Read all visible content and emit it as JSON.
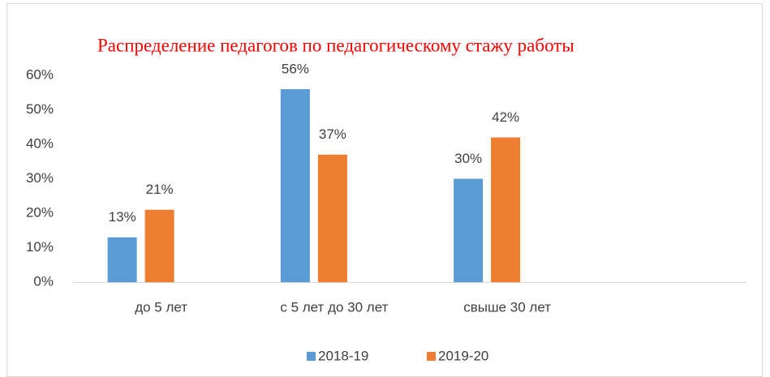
{
  "chart_data": {
    "type": "bar",
    "title": "Распределение педагогов по педагогическому стажу работы",
    "categories": [
      "до 5 лет",
      "с 5 лет до 30 лет",
      "свыше 30 лет",
      null
    ],
    "series": [
      {
        "name": "2018-19",
        "color": "#5b9bd5",
        "values": [
          13,
          56,
          30,
          null
        ],
        "value_labels": [
          "13%",
          "56%",
          "30%",
          null
        ]
      },
      {
        "name": "2019-20",
        "color": "#ed7d31",
        "values": [
          21,
          37,
          42,
          null
        ],
        "value_labels": [
          "21%",
          "37%",
          "42%",
          null
        ]
      }
    ],
    "ylim": [
      0,
      60
    ],
    "yticks": [
      {
        "value": 0,
        "label": "0%"
      },
      {
        "value": 10,
        "label": "10%"
      },
      {
        "value": 20,
        "label": "20%"
      },
      {
        "value": 30,
        "label": "30%"
      },
      {
        "value": 40,
        "label": "40%"
      },
      {
        "value": 50,
        "label": "50%"
      },
      {
        "value": 60,
        "label": "60%"
      }
    ],
    "grid": false,
    "legend": "bottom"
  }
}
